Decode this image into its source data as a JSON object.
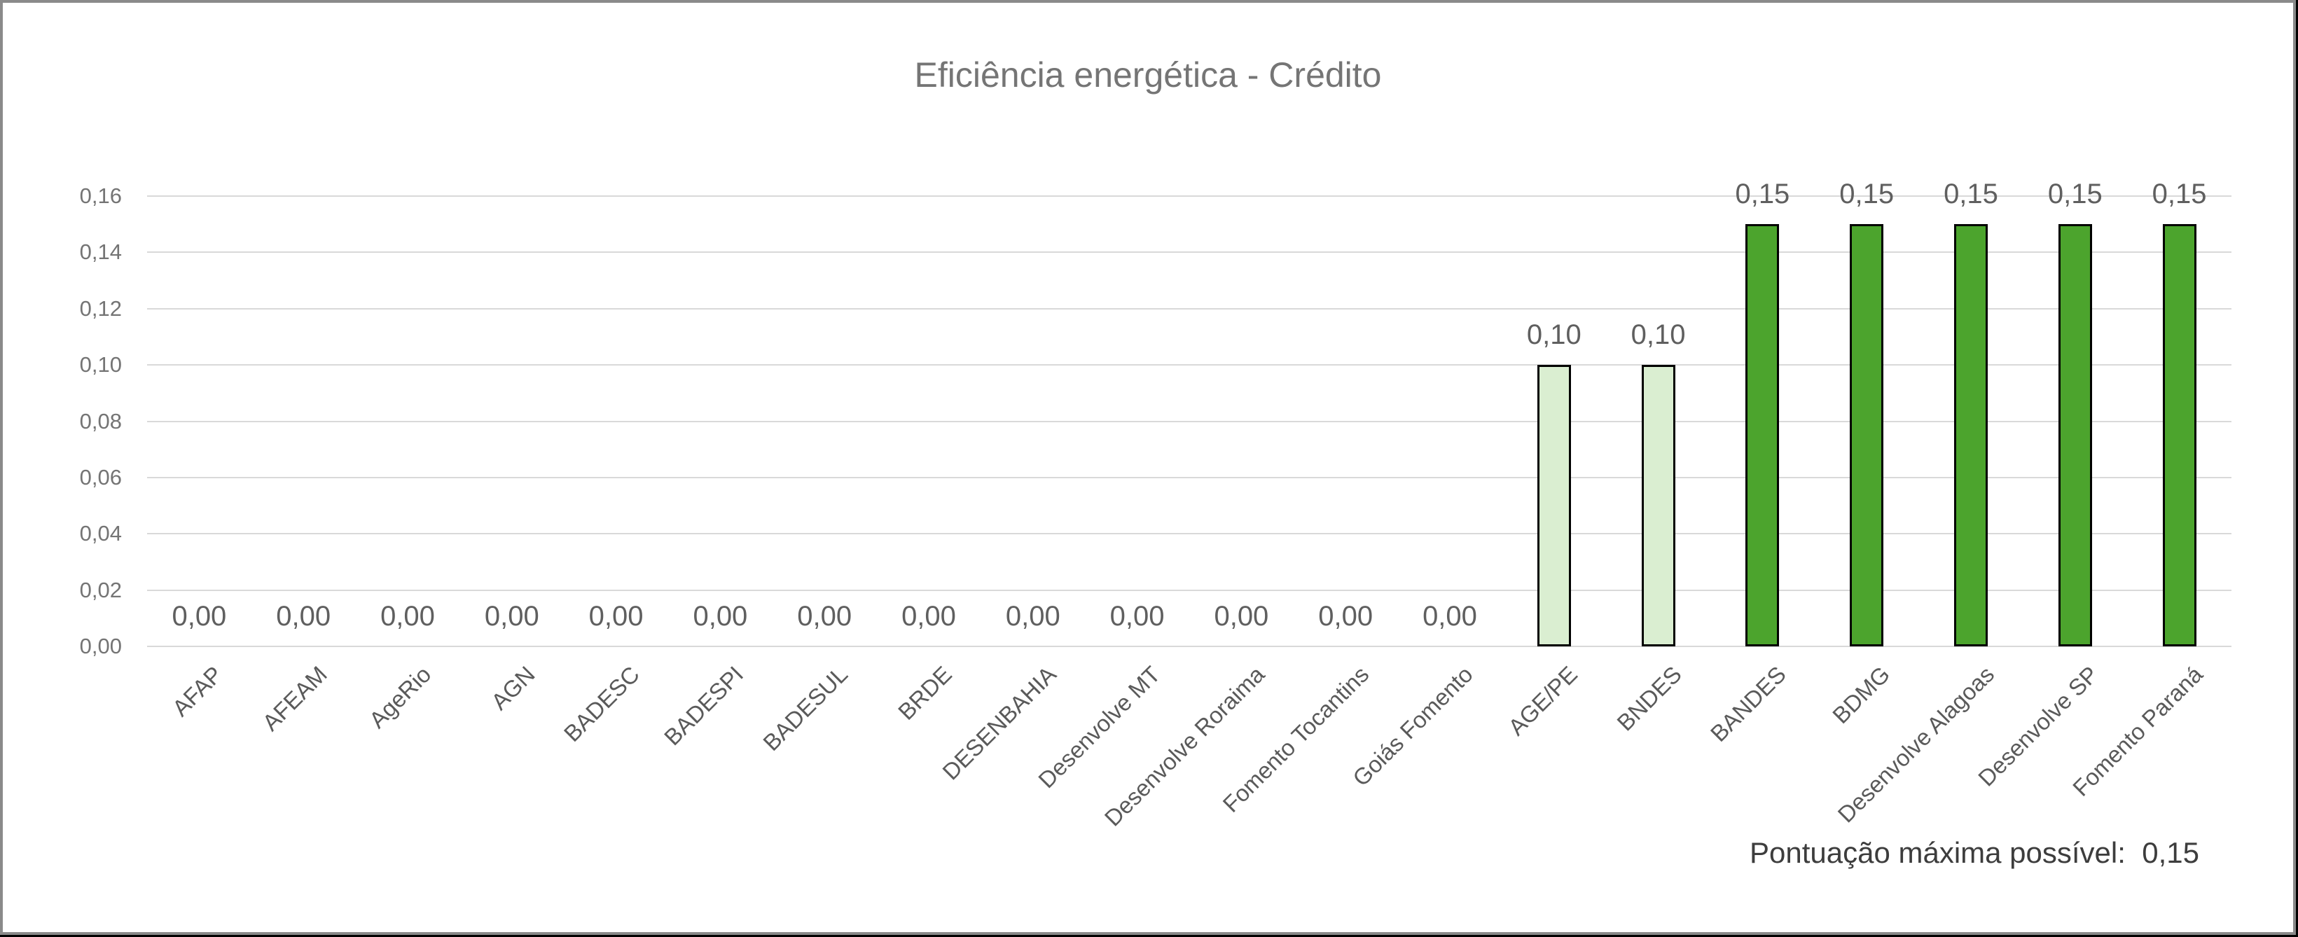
{
  "chart_data": {
    "type": "bar",
    "title": "Eficiência energética - Crédito",
    "categories": [
      "AFAP",
      "AFEAM",
      "AgeRio",
      "AGN",
      "BADESC",
      "BADESPI",
      "BADESUL",
      "BRDE",
      "DESENBAHIA",
      "Desenvolve MT",
      "Desenvolve Roraima",
      "Fomento Tocantins",
      "Goiás Fomento",
      "AGE/PE",
      "BNDES",
      "BANDES",
      "BDMG",
      "Desenvolve Alagoas",
      "Desenvolve SP",
      "Fomento Paraná"
    ],
    "values": [
      0,
      0,
      0,
      0,
      0,
      0,
      0,
      0,
      0,
      0,
      0,
      0,
      0,
      0.1,
      0.1,
      0.15,
      0.15,
      0.15,
      0.15,
      0.15
    ],
    "data_labels": [
      "0,00",
      "0,00",
      "0,00",
      "0,00",
      "0,00",
      "0,00",
      "0,00",
      "0,00",
      "0,00",
      "0,00",
      "0,00",
      "0,00",
      "0,00",
      "0,10",
      "0,10",
      "0,15",
      "0,15",
      "0,15",
      "0,15",
      "0,15"
    ],
    "bar_styles": [
      "none",
      "none",
      "none",
      "none",
      "none",
      "none",
      "none",
      "none",
      "none",
      "none",
      "none",
      "none",
      "none",
      "light",
      "light",
      "dark",
      "dark",
      "dark",
      "dark",
      "dark"
    ],
    "yticks": [
      "0,00",
      "0,02",
      "0,04",
      "0,06",
      "0,08",
      "0,10",
      "0,12",
      "0,14",
      "0,16"
    ],
    "ylim": [
      0,
      0.16
    ],
    "xlabel": "",
    "ylabel": "",
    "grid": true,
    "legend": "none"
  },
  "footer": {
    "text": "Pontuação máxima possível:  0,15"
  },
  "colors": {
    "bar_light": "#daeed1",
    "bar_dark": "#4ca42d",
    "bar_outline": "#000000",
    "gridline": "#d9d9d9",
    "title_text": "#757575",
    "tick_text": "#747474",
    "data_label_text": "#5f5f5f",
    "category_text": "#5a5a5a",
    "footer_text": "#3d3d3d",
    "frame_gray": "#8a8a8a",
    "frame_black": "#000000"
  }
}
